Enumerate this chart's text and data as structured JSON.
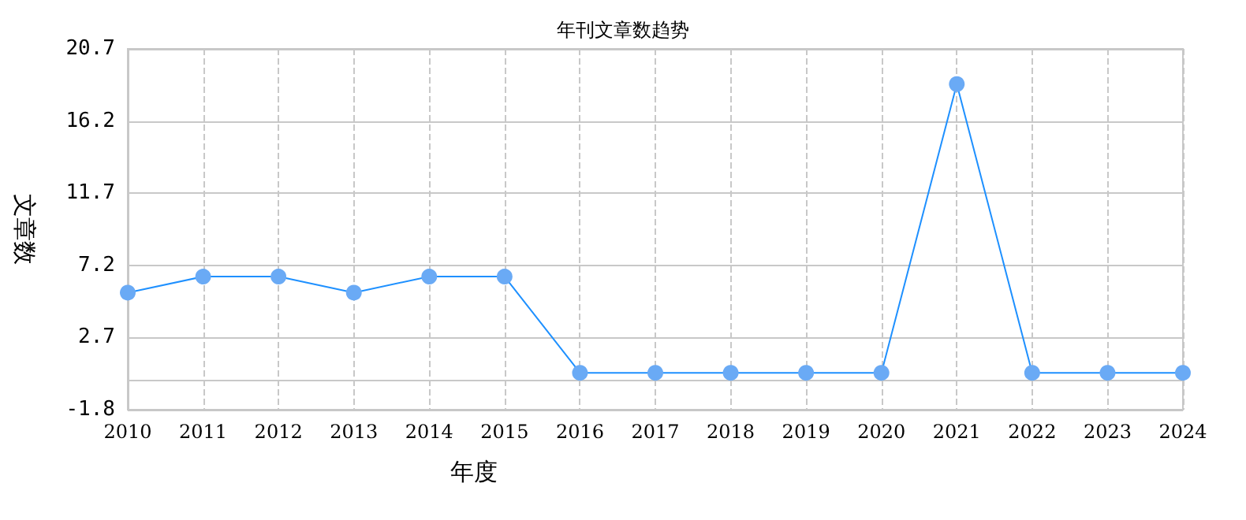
{
  "chart_data": {
    "type": "line",
    "title": "年刊文章数趋势",
    "xlabel": "年度",
    "ylabel": "文章数",
    "categories": [
      "2010",
      "2011",
      "2012",
      "2013",
      "2014",
      "2015",
      "2016",
      "2017",
      "2018",
      "2019",
      "2020",
      "2021",
      "2022",
      "2023",
      "2024"
    ],
    "series": [
      {
        "color": "#1e90ff",
        "values": [
          5.5,
          6.5,
          6.5,
          5.5,
          6.5,
          6.5,
          0.5,
          0.5,
          0.5,
          0.5,
          0.5,
          18.5,
          0.5,
          0.5,
          0.5
        ]
      }
    ],
    "ylim": [
      -1.8,
      20.7
    ],
    "yticks": [
      -1.8,
      2.7,
      7.2,
      11.7,
      16.2,
      20.7
    ],
    "grid": true,
    "marker": "circle",
    "line_style": "solid"
  }
}
